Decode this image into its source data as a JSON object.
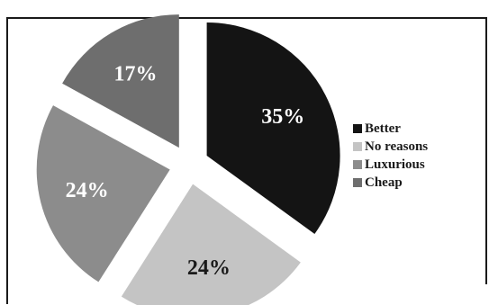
{
  "chart_data": {
    "type": "pie",
    "title": "",
    "slices": [
      {
        "label": "Better",
        "value": 35,
        "value_label": "35%",
        "color": "#141414",
        "label_color": "#ffffff"
      },
      {
        "label": "No reasons",
        "value": 24,
        "value_label": "24%",
        "color": "#c4c4c4",
        "label_color": "#1a1a1a"
      },
      {
        "label": "Luxurious",
        "value": 24,
        "value_label": "24%",
        "color": "#8c8c8c",
        "label_color": "#ffffff"
      },
      {
        "label": "Cheap",
        "value": 17,
        "value_label": "17%",
        "color": "#6e6e6e",
        "label_color": "#ffffff"
      }
    ],
    "start_angle_deg": 0,
    "direction": "clockwise",
    "exploded": true,
    "legend_position": "right"
  }
}
